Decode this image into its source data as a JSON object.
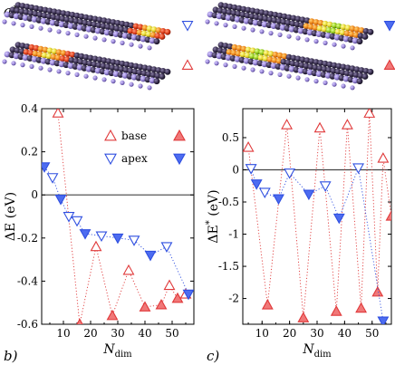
{
  "panel_labels": {
    "a": "a)",
    "b": "b)",
    "c": "c)"
  },
  "structures": [
    {
      "panel": "left",
      "row": "apex",
      "marker": "apex-open"
    },
    {
      "panel": "left",
      "row": "base",
      "marker": "base-open"
    },
    {
      "panel": "right",
      "row": "apex",
      "marker": "apex-filled"
    },
    {
      "panel": "right",
      "row": "base",
      "marker": "base-filled"
    }
  ],
  "colors": {
    "base": "#e0393a",
    "base_fill": "#f07878",
    "apex": "#2f4fe0",
    "apex_fill": "#4d6cf0",
    "zero_line": "#444444"
  },
  "chart_data": [
    {
      "type": "scatter",
      "panel": "b",
      "ylabel_main": "ΔE",
      "ylabel_unit": " (eV)",
      "xlabel_main": "N",
      "xlabel_sub": "dim",
      "xlim": [
        2,
        58
      ],
      "ylim": [
        -0.6,
        0.4
      ],
      "xticks": [
        10,
        20,
        30,
        40,
        50
      ],
      "yticks": [
        -0.6,
        -0.4,
        -0.2,
        0,
        0.2,
        0.4
      ],
      "ytick_labels": [
        "-0.6",
        "-0.4",
        "-0.2",
        "0",
        "0.2",
        "0.4"
      ],
      "zero_line": 0,
      "legend": {
        "placement": "top-right",
        "entries": [
          "base",
          "apex"
        ]
      },
      "series": [
        {
          "name": "base",
          "color_key": "base",
          "line": "dotted",
          "points": [
            {
              "x": 8,
              "y": 0.38,
              "filled": false
            },
            {
              "x": 16,
              "y": -0.6,
              "filled": true
            },
            {
              "x": 22,
              "y": -0.24,
              "filled": false
            },
            {
              "x": 28,
              "y": -0.56,
              "filled": true
            },
            {
              "x": 34,
              "y": -0.35,
              "filled": false
            },
            {
              "x": 40,
              "y": -0.52,
              "filled": true
            },
            {
              "x": 46,
              "y": -0.51,
              "filled": true
            },
            {
              "x": 49,
              "y": -0.42,
              "filled": false
            },
            {
              "x": 52,
              "y": -0.48,
              "filled": true
            },
            {
              "x": 55,
              "y": -0.46,
              "filled": false
            }
          ]
        },
        {
          "name": "apex",
          "color_key": "apex",
          "line": "dotted",
          "points": [
            {
              "x": 3,
              "y": 0.13,
              "filled": true
            },
            {
              "x": 6,
              "y": 0.08,
              "filled": false
            },
            {
              "x": 9,
              "y": -0.02,
              "filled": true
            },
            {
              "x": 12,
              "y": -0.1,
              "filled": false
            },
            {
              "x": 15,
              "y": -0.12,
              "filled": false
            },
            {
              "x": 18,
              "y": -0.18,
              "filled": true
            },
            {
              "x": 24,
              "y": -0.19,
              "filled": false
            },
            {
              "x": 30,
              "y": -0.2,
              "filled": true
            },
            {
              "x": 36,
              "y": -0.21,
              "filled": false
            },
            {
              "x": 42,
              "y": -0.28,
              "filled": true
            },
            {
              "x": 48,
              "y": -0.24,
              "filled": false
            },
            {
              "x": 56,
              "y": -0.46,
              "filled": true
            }
          ]
        }
      ]
    },
    {
      "type": "scatter",
      "panel": "c",
      "ylabel_main": "ΔE",
      "ylabel_sup": "*",
      "ylabel_unit": " (eV)",
      "xlabel_main": "N",
      "xlabel_sub": "dim",
      "xlim": [
        3,
        57
      ],
      "ylim": [
        -2.4,
        0.95
      ],
      "xticks": [
        10,
        20,
        30,
        40,
        50
      ],
      "yticks": [
        -2,
        -1.5,
        -1,
        -0.5,
        0,
        0.5
      ],
      "ytick_labels": [
        "-2",
        "-1.5",
        "-1",
        "-0.5",
        "0",
        "0.5"
      ],
      "zero_line": 0,
      "series": [
        {
          "name": "base",
          "color_key": "base",
          "line": "dotted",
          "points": [
            {
              "x": 5,
              "y": 0.35,
              "filled": false
            },
            {
              "x": 12,
              "y": -2.1,
              "filled": true
            },
            {
              "x": 19,
              "y": 0.7,
              "filled": false
            },
            {
              "x": 25,
              "y": -2.3,
              "filled": true
            },
            {
              "x": 31,
              "y": 0.65,
              "filled": false
            },
            {
              "x": 37,
              "y": -2.2,
              "filled": true
            },
            {
              "x": 41,
              "y": 0.7,
              "filled": false
            },
            {
              "x": 46,
              "y": -2.15,
              "filled": true
            },
            {
              "x": 49,
              "y": 0.88,
              "filled": false
            },
            {
              "x": 52,
              "y": -1.9,
              "filled": true
            },
            {
              "x": 54,
              "y": 0.18,
              "filled": false
            },
            {
              "x": 57,
              "y": -0.72,
              "filled": true
            }
          ]
        },
        {
          "name": "apex",
          "color_key": "apex",
          "line": "dotted",
          "points": [
            {
              "x": 6,
              "y": 0.02,
              "filled": false
            },
            {
              "x": 8,
              "y": -0.22,
              "filled": true
            },
            {
              "x": 11,
              "y": -0.35,
              "filled": false
            },
            {
              "x": 16,
              "y": -0.45,
              "filled": true
            },
            {
              "x": 20,
              "y": -0.05,
              "filled": false
            },
            {
              "x": 27,
              "y": -0.38,
              "filled": true
            },
            {
              "x": 33,
              "y": -0.25,
              "filled": false
            },
            {
              "x": 38,
              "y": -0.75,
              "filled": true
            },
            {
              "x": 45,
              "y": 0.03,
              "filled": false
            },
            {
              "x": 54,
              "y": -2.35,
              "filled": true
            }
          ]
        }
      ]
    }
  ]
}
